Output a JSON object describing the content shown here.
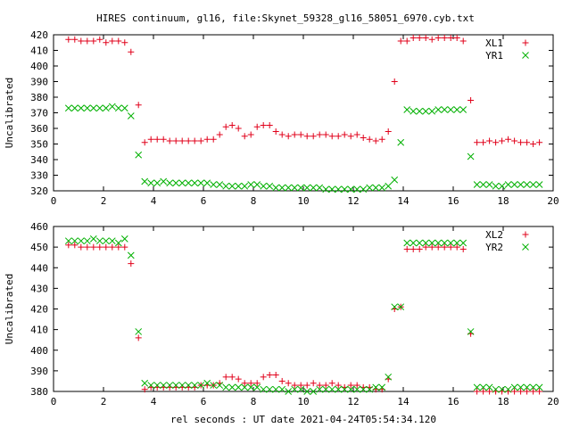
{
  "title": "HIRES continuum, gl16, file:Skynet_59328_gl16_58051_6970.cyb.txt",
  "xlabel": "rel seconds : UT date 2021-04-24T05:54:34.120",
  "colors": {
    "red": "#e0001a",
    "green": "#00b000",
    "axis": "#000000"
  },
  "chart_data": [
    {
      "type": "scatter",
      "ylabel": "Uncalibrated",
      "xlim": [
        0,
        20
      ],
      "ylim": [
        320,
        420
      ],
      "xticks": [
        0,
        2,
        4,
        6,
        8,
        10,
        12,
        14,
        16,
        18,
        20
      ],
      "yticks": [
        320,
        330,
        340,
        350,
        360,
        370,
        380,
        390,
        400,
        410,
        420
      ],
      "legend_position": "top-right",
      "x": [
        0.6,
        0.85,
        1.1,
        1.35,
        1.6,
        1.85,
        2.1,
        2.35,
        2.6,
        2.85,
        3.1,
        3.4,
        3.65,
        3.9,
        4.15,
        4.4,
        4.65,
        4.9,
        5.15,
        5.4,
        5.65,
        5.9,
        6.15,
        6.4,
        6.65,
        6.9,
        7.15,
        7.4,
        7.65,
        7.9,
        8.15,
        8.4,
        8.65,
        8.9,
        9.15,
        9.4,
        9.65,
        9.9,
        10.15,
        10.4,
        10.65,
        10.9,
        11.15,
        11.4,
        11.65,
        11.9,
        12.15,
        12.4,
        12.65,
        12.9,
        13.15,
        13.4,
        13.65,
        13.9,
        14.15,
        14.4,
        14.65,
        14.9,
        15.15,
        15.4,
        15.65,
        15.9,
        16.15,
        16.4,
        16.7,
        16.95,
        17.2,
        17.45,
        17.7,
        17.95,
        18.2,
        18.45,
        18.7,
        18.95,
        19.2,
        19.45
      ],
      "series": [
        {
          "name": "XL1",
          "marker": "plus",
          "values": [
            417,
            417,
            416,
            416,
            416,
            417,
            415,
            416,
            416,
            415,
            409,
            375,
            351,
            353,
            353,
            353,
            352,
            352,
            352,
            352,
            352,
            352,
            353,
            353,
            356,
            361,
            362,
            360,
            355,
            356,
            361,
            362,
            362,
            358,
            356,
            355,
            356,
            356,
            355,
            355,
            356,
            356,
            355,
            355,
            356,
            355,
            356,
            354,
            353,
            352,
            353,
            358,
            390,
            416,
            416,
            418,
            418,
            418,
            417,
            418,
            418,
            418,
            418,
            416,
            378,
            351,
            351,
            352,
            351,
            352,
            353,
            352,
            351,
            351,
            350,
            351
          ]
        },
        {
          "name": "YR1",
          "marker": "cross",
          "values": [
            373,
            373,
            373,
            373,
            373,
            373,
            373,
            374,
            373,
            373,
            368,
            343,
            326,
            325,
            325,
            326,
            325,
            325,
            325,
            325,
            325,
            325,
            325,
            324,
            324,
            323,
            323,
            323,
            323,
            324,
            324,
            323,
            323,
            322,
            322,
            322,
            322,
            322,
            322,
            322,
            322,
            321,
            321,
            321,
            321,
            321,
            321,
            321,
            322,
            322,
            322,
            323,
            327,
            351,
            372,
            371,
            371,
            371,
            371,
            372,
            372,
            372,
            372,
            372,
            342,
            324,
            324,
            324,
            323,
            323,
            324,
            324,
            324,
            324,
            324,
            324
          ]
        }
      ]
    },
    {
      "type": "scatter",
      "ylabel": "Uncalibrated",
      "xlim": [
        0,
        20
      ],
      "ylim": [
        380,
        460
      ],
      "xticks": [
        0,
        2,
        4,
        6,
        8,
        10,
        12,
        14,
        16,
        18,
        20
      ],
      "yticks": [
        380,
        390,
        400,
        410,
        420,
        430,
        440,
        450,
        460
      ],
      "legend_position": "top-right",
      "x": [
        0.6,
        0.85,
        1.1,
        1.35,
        1.6,
        1.85,
        2.1,
        2.35,
        2.6,
        2.85,
        3.1,
        3.4,
        3.65,
        3.9,
        4.15,
        4.4,
        4.65,
        4.9,
        5.15,
        5.4,
        5.65,
        5.9,
        6.15,
        6.4,
        6.65,
        6.9,
        7.15,
        7.4,
        7.65,
        7.9,
        8.15,
        8.4,
        8.65,
        8.9,
        9.15,
        9.4,
        9.65,
        9.9,
        10.15,
        10.4,
        10.65,
        10.9,
        11.15,
        11.4,
        11.65,
        11.9,
        12.15,
        12.4,
        12.65,
        12.9,
        13.15,
        13.4,
        13.65,
        13.9,
        14.15,
        14.4,
        14.65,
        14.9,
        15.15,
        15.4,
        15.65,
        15.9,
        16.15,
        16.4,
        16.7,
        16.95,
        17.2,
        17.45,
        17.7,
        17.95,
        18.2,
        18.45,
        18.7,
        18.95,
        19.2,
        19.45
      ],
      "series": [
        {
          "name": "XL2",
          "marker": "plus",
          "values": [
            451,
            451,
            450,
            450,
            450,
            450,
            450,
            450,
            450,
            450,
            442,
            406,
            381,
            382,
            382,
            382,
            382,
            382,
            382,
            382,
            382,
            383,
            383,
            383,
            384,
            387,
            387,
            386,
            384,
            384,
            384,
            387,
            388,
            388,
            385,
            384,
            383,
            383,
            383,
            384,
            383,
            383,
            384,
            383,
            382,
            383,
            383,
            382,
            382,
            381,
            381,
            386,
            420,
            421,
            449,
            449,
            449,
            450,
            450,
            450,
            450,
            450,
            450,
            449,
            408,
            380,
            380,
            380,
            380,
            380,
            380,
            380,
            380,
            380,
            380,
            380
          ]
        },
        {
          "name": "YR2",
          "marker": "cross",
          "values": [
            453,
            453,
            453,
            453,
            454,
            453,
            453,
            453,
            452,
            454,
            446,
            409,
            384,
            383,
            383,
            383,
            383,
            383,
            383,
            383,
            383,
            383,
            384,
            383,
            383,
            382,
            382,
            382,
            382,
            382,
            382,
            381,
            381,
            381,
            381,
            380,
            381,
            381,
            380,
            380,
            381,
            381,
            381,
            381,
            381,
            381,
            381,
            381,
            381,
            382,
            382,
            387,
            421,
            421,
            452,
            452,
            452,
            452,
            452,
            452,
            452,
            452,
            452,
            452,
            409,
            382,
            382,
            382,
            381,
            381,
            381,
            382,
            382,
            382,
            382,
            382
          ]
        }
      ]
    }
  ]
}
